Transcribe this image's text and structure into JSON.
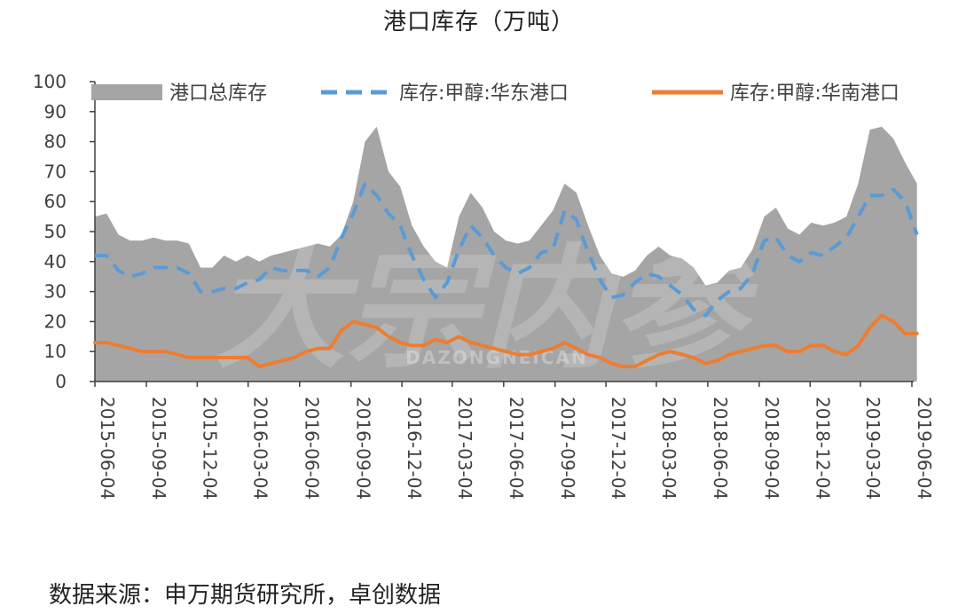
{
  "chart_data": {
    "type": "area+line",
    "title": "港口库存（万吨）",
    "ylim": [
      0,
      100
    ],
    "yticks": [
      0,
      10,
      20,
      30,
      40,
      50,
      60,
      70,
      80,
      90,
      100
    ],
    "xticks": [
      "2015-06-04",
      "2015-09-04",
      "2015-12-04",
      "2016-03-04",
      "2016-06-04",
      "2016-09-04",
      "2016-12-04",
      "2017-03-04",
      "2017-06-04",
      "2017-09-04",
      "2017-12-04",
      "2018-03-04",
      "2018-06-04",
      "2018-09-04",
      "2018-12-04",
      "2019-03-04",
      "2019-06-04"
    ],
    "x": [
      "2015-06-04",
      "2015-06-25",
      "2015-07-16",
      "2015-08-06",
      "2015-08-27",
      "2015-09-17",
      "2015-10-08",
      "2015-10-29",
      "2015-11-19",
      "2015-12-10",
      "2015-12-31",
      "2016-01-21",
      "2016-02-11",
      "2016-03-03",
      "2016-03-24",
      "2016-04-14",
      "2016-05-05",
      "2016-05-26",
      "2016-06-16",
      "2016-07-07",
      "2016-07-28",
      "2016-08-18",
      "2016-09-08",
      "2016-09-29",
      "2016-10-20",
      "2016-11-10",
      "2016-12-01",
      "2016-12-22",
      "2017-01-12",
      "2017-02-02",
      "2017-02-23",
      "2017-03-16",
      "2017-04-06",
      "2017-04-27",
      "2017-05-18",
      "2017-06-08",
      "2017-06-29",
      "2017-07-20",
      "2017-08-10",
      "2017-08-31",
      "2017-09-21",
      "2017-10-12",
      "2017-11-02",
      "2017-11-23",
      "2017-12-14",
      "2018-01-04",
      "2018-01-25",
      "2018-02-15",
      "2018-03-08",
      "2018-03-29",
      "2018-04-19",
      "2018-05-10",
      "2018-05-31",
      "2018-06-21",
      "2018-07-12",
      "2018-08-02",
      "2018-08-23",
      "2018-09-13",
      "2018-10-04",
      "2018-10-25",
      "2018-11-15",
      "2018-12-06",
      "2018-12-27",
      "2019-01-17",
      "2019-02-07",
      "2019-02-28",
      "2019-03-21",
      "2019-04-11",
      "2019-05-02",
      "2019-05-23",
      "2019-06-13"
    ],
    "series": [
      {
        "name": "港口总库存",
        "style": "area",
        "color": "#a5a5a5",
        "values": [
          55,
          56,
          49,
          47,
          47,
          48,
          47,
          47,
          46,
          38,
          38,
          42,
          40,
          42,
          40,
          42,
          43,
          44,
          45,
          46,
          45,
          49,
          60,
          80,
          85,
          70,
          65,
          52,
          45,
          40,
          38,
          55,
          63,
          58,
          50,
          47,
          46,
          47,
          52,
          57,
          66,
          63,
          52,
          42,
          36,
          35,
          37,
          42,
          45,
          42,
          41,
          38,
          32,
          33,
          37,
          38,
          44,
          55,
          58,
          51,
          49,
          53,
          52,
          53,
          55,
          66,
          84,
          85,
          81,
          73,
          66
        ]
      },
      {
        "name": "库存:甲醇:华东港口",
        "style": "dashed",
        "color": "#5b9bd5",
        "values": [
          42,
          42,
          37,
          35,
          36,
          38,
          38,
          38,
          36,
          30,
          30,
          31,
          31,
          33,
          34,
          38,
          37,
          37,
          37,
          35,
          38,
          48,
          56,
          66,
          62,
          56,
          52,
          42,
          34,
          28,
          33,
          44,
          52,
          48,
          42,
          38,
          36,
          38,
          43,
          44,
          57,
          54,
          43,
          34,
          28,
          29,
          33,
          36,
          35,
          32,
          29,
          24,
          22,
          27,
          30,
          31,
          36,
          47,
          48,
          42,
          40,
          43,
          42,
          45,
          48,
          55,
          62,
          62,
          64,
          60,
          49
        ]
      },
      {
        "name": "库存:甲醇:华南港口",
        "style": "solid",
        "color": "#ed7d31",
        "values": [
          13,
          13,
          12,
          11,
          10,
          10,
          10,
          9,
          8,
          8,
          8,
          8,
          8,
          8,
          5,
          6,
          7,
          8,
          10,
          11,
          11,
          17,
          20,
          19,
          18,
          15,
          13,
          12,
          12,
          14,
          13,
          15,
          13,
          12,
          11,
          10,
          9,
          9,
          10,
          11,
          13,
          11,
          9,
          8,
          6,
          5,
          5,
          7,
          9,
          10,
          9,
          8,
          6,
          7,
          9,
          10,
          11,
          12,
          12,
          10,
          10,
          12,
          12,
          10,
          9,
          12,
          18,
          22,
          20,
          16,
          16
        ]
      }
    ]
  },
  "watermark": {
    "main": "大宗内参",
    "latin": "DAZONGNEICAN"
  },
  "source": "数据来源：申万期货研究所，卓创数据"
}
